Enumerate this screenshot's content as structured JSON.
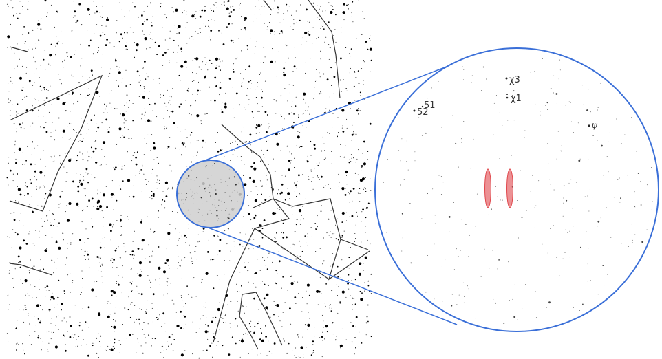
{
  "colors": {
    "background": "#ffffff",
    "stars": "#000000",
    "constellation_lines": "#333333",
    "zoom_outline": "#3a6fd8",
    "lens_fill": "#cfcfcf",
    "target_marker": "#e0474c"
  },
  "magnified_view": {
    "labels": {
      "chi3": "χ3",
      "chi1": "χ1",
      "num51": "51",
      "num52": "52",
      "psi": "ψ"
    },
    "target_markers": [
      "ellipse-left",
      "ellipse-right"
    ]
  }
}
